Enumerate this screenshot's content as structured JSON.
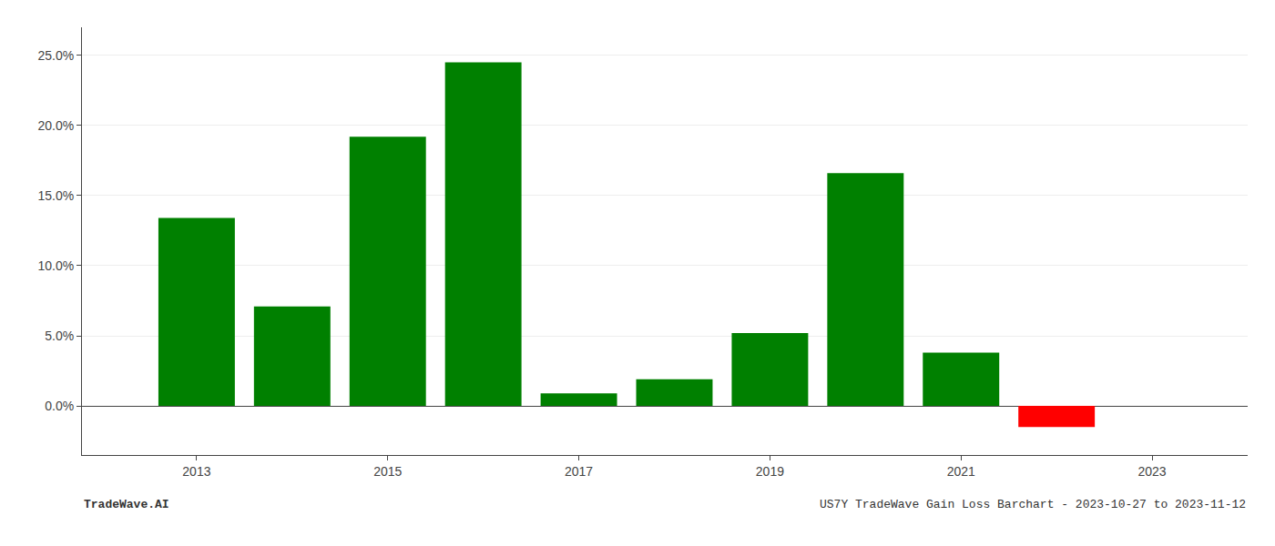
{
  "chart_data": {
    "type": "bar",
    "x": [
      2013,
      2014,
      2015,
      2016,
      2017,
      2018,
      2019,
      2020,
      2021,
      2022
    ],
    "values": [
      0.134,
      0.071,
      0.192,
      0.245,
      0.009,
      0.019,
      0.052,
      0.166,
      0.038,
      -0.015
    ],
    "colors": [
      "#008000",
      "#008000",
      "#008000",
      "#008000",
      "#008000",
      "#008000",
      "#008000",
      "#008000",
      "#008000",
      "#ff0000"
    ],
    "xlim": [
      2011.8,
      2024.0
    ],
    "xticks": [
      2013,
      2015,
      2017,
      2019,
      2021,
      2023
    ],
    "ylim": [
      -0.035,
      0.27
    ],
    "yticks": [
      {
        "value": 0.0,
        "label": "0.0%"
      },
      {
        "value": 0.05,
        "label": "5.0%"
      },
      {
        "value": 0.1,
        "label": "10.0%"
      },
      {
        "value": 0.15,
        "label": "15.0%"
      },
      {
        "value": 0.2,
        "label": "20.0%"
      },
      {
        "value": 0.25,
        "label": "25.0%"
      }
    ],
    "grid": true,
    "annotations": [
      "TradeWave.AI",
      "US7Y TradeWave Gain Loss Barchart - 2023-10-27 to 2023-11-12"
    ]
  }
}
